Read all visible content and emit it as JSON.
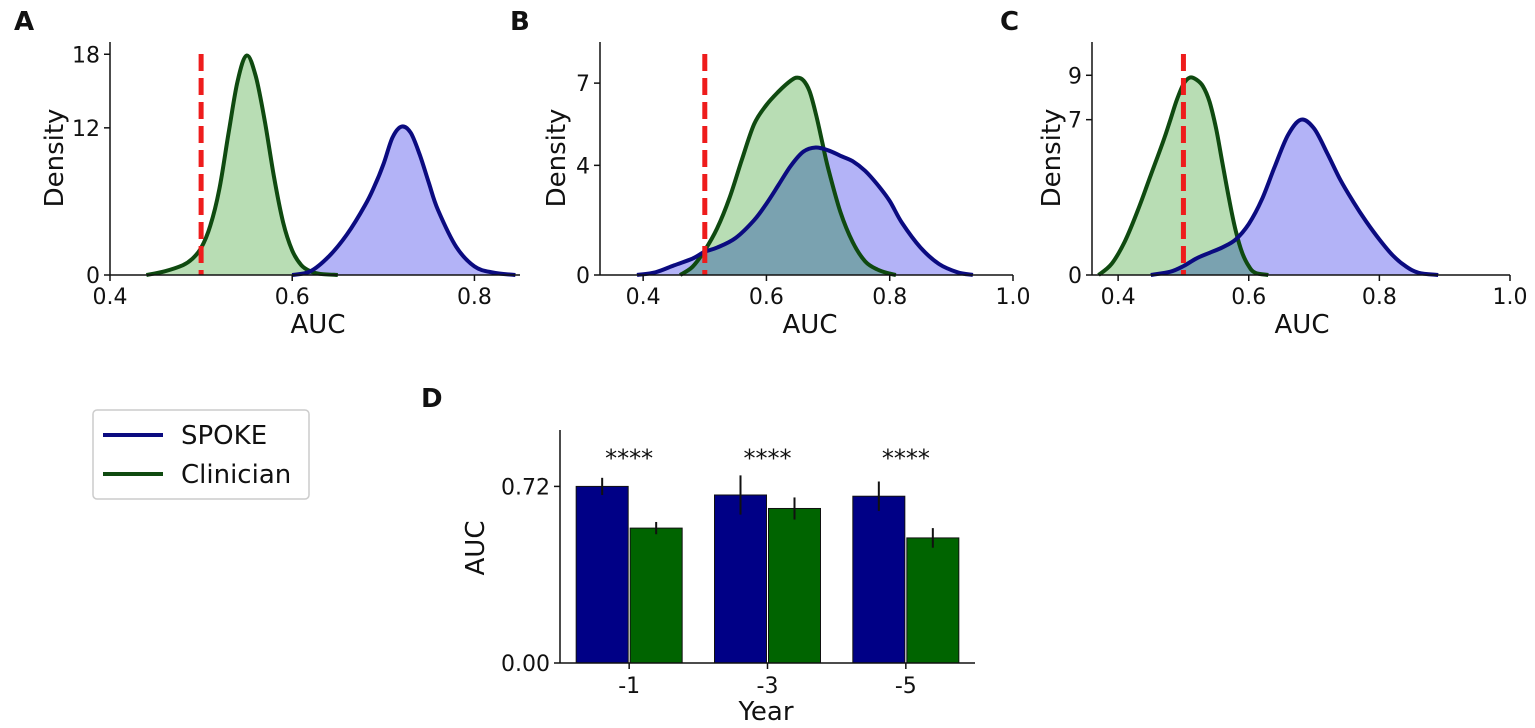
{
  "colors": {
    "spoke_line": "#0b0b80",
    "spoke_fill": "#b3b3f7",
    "clinician_line": "#0f4a10",
    "clinician_fill": "#b8ddb4",
    "overlap_fill": "#7aa2b0",
    "chance_line": "#ee1c1c",
    "spoke_bar": "#000086",
    "clinician_bar": "#006400"
  },
  "legend": {
    "entries": [
      {
        "label": "SPOKE",
        "color": "#0b0b80"
      },
      {
        "label": "Clinician",
        "color": "#0f4a10"
      }
    ]
  },
  "chart_data": [
    {
      "panel": "A",
      "type": "area",
      "title": "",
      "xlabel": "AUC",
      "ylabel": "Density",
      "xlim": [
        0.4,
        0.85
      ],
      "ylim": [
        0,
        19
      ],
      "xticks": [
        0.4,
        0.6,
        0.8
      ],
      "xtick_labels": [
        "0.4",
        "0.6",
        "0.8"
      ],
      "yticks": [
        0,
        12,
        18
      ],
      "ytick_labels": [
        "0",
        "12",
        "18"
      ],
      "chance_x": 0.5,
      "series": [
        {
          "name": "Clinician",
          "x": [
            0.44,
            0.46,
            0.48,
            0.49,
            0.5,
            0.51,
            0.52,
            0.53,
            0.54,
            0.55,
            0.56,
            0.57,
            0.58,
            0.59,
            0.6,
            0.61,
            0.62,
            0.63,
            0.65
          ],
          "y": [
            0,
            0.3,
            0.8,
            1.3,
            2.2,
            4.0,
            7.0,
            11.5,
            15.8,
            17.9,
            16.2,
            12.5,
            8.0,
            4.3,
            2.0,
            0.8,
            0.3,
            0.1,
            0
          ]
        },
        {
          "name": "SPOKE",
          "x": [
            0.6,
            0.62,
            0.64,
            0.66,
            0.68,
            0.69,
            0.7,
            0.71,
            0.72,
            0.73,
            0.74,
            0.75,
            0.76,
            0.78,
            0.8,
            0.82,
            0.845
          ],
          "y": [
            0,
            0.3,
            1.5,
            3.3,
            5.7,
            7.2,
            9.0,
            11.2,
            12.1,
            11.6,
            9.8,
            7.5,
            5.3,
            2.3,
            0.7,
            0.2,
            0
          ]
        }
      ]
    },
    {
      "panel": "B",
      "type": "area",
      "title": "",
      "xlabel": "AUC",
      "ylabel": "Density",
      "xlim": [
        0.33,
        1.0
      ],
      "ylim": [
        0,
        8.5
      ],
      "xticks": [
        0.4,
        0.6,
        0.8,
        1.0
      ],
      "xtick_labels": [
        "0.4",
        "0.6",
        "0.8",
        "1.0"
      ],
      "yticks": [
        0,
        4,
        7
      ],
      "ytick_labels": [
        "0",
        "4",
        "7"
      ],
      "chance_x": 0.5,
      "series": [
        {
          "name": "Clinician",
          "x": [
            0.46,
            0.48,
            0.5,
            0.52,
            0.54,
            0.56,
            0.58,
            0.6,
            0.62,
            0.64,
            0.65,
            0.66,
            0.67,
            0.68,
            0.69,
            0.7,
            0.72,
            0.74,
            0.76,
            0.78,
            0.8,
            0.81
          ],
          "y": [
            0,
            0.3,
            0.9,
            1.7,
            2.8,
            4.2,
            5.5,
            6.2,
            6.7,
            7.1,
            7.2,
            7.1,
            6.7,
            5.9,
            4.9,
            3.9,
            2.3,
            1.2,
            0.5,
            0.2,
            0.05,
            0
          ]
        },
        {
          "name": "SPOKE",
          "x": [
            0.39,
            0.42,
            0.45,
            0.48,
            0.5,
            0.52,
            0.55,
            0.58,
            0.6,
            0.62,
            0.64,
            0.66,
            0.68,
            0.7,
            0.72,
            0.74,
            0.76,
            0.78,
            0.8,
            0.82,
            0.85,
            0.88,
            0.91,
            0.935
          ],
          "y": [
            0,
            0.1,
            0.35,
            0.6,
            0.85,
            1.0,
            1.35,
            2.0,
            2.6,
            3.3,
            4.0,
            4.5,
            4.65,
            4.55,
            4.35,
            4.15,
            3.8,
            3.3,
            2.7,
            1.9,
            1.0,
            0.4,
            0.1,
            0
          ]
        }
      ]
    },
    {
      "panel": "C",
      "type": "area",
      "title": "",
      "xlabel": "AUC",
      "ylabel": "Density",
      "xlim": [
        0.36,
        1.0
      ],
      "ylim": [
        0,
        10.5
      ],
      "xticks": [
        0.4,
        0.6,
        0.8,
        1.0
      ],
      "xtick_labels": [
        "0.4",
        "0.6",
        "0.8",
        "1.0"
      ],
      "yticks": [
        0,
        7,
        9
      ],
      "ytick_labels": [
        "0",
        "7",
        "9"
      ],
      "chance_x": 0.5,
      "series": [
        {
          "name": "Clinician",
          "x": [
            0.37,
            0.39,
            0.41,
            0.43,
            0.45,
            0.47,
            0.48,
            0.49,
            0.5,
            0.51,
            0.52,
            0.53,
            0.54,
            0.55,
            0.56,
            0.57,
            0.58,
            0.59,
            0.6,
            0.61,
            0.63
          ],
          "y": [
            0,
            0.5,
            1.5,
            2.9,
            4.5,
            6.1,
            7.0,
            7.9,
            8.6,
            8.9,
            8.8,
            8.5,
            7.8,
            6.6,
            5.0,
            3.4,
            2.0,
            1.0,
            0.4,
            0.1,
            0
          ]
        },
        {
          "name": "SPOKE",
          "x": [
            0.45,
            0.48,
            0.5,
            0.52,
            0.54,
            0.56,
            0.58,
            0.6,
            0.62,
            0.64,
            0.66,
            0.68,
            0.7,
            0.72,
            0.74,
            0.76,
            0.78,
            0.8,
            0.82,
            0.84,
            0.86,
            0.89
          ],
          "y": [
            0,
            0.15,
            0.4,
            0.75,
            1.0,
            1.25,
            1.6,
            2.3,
            3.4,
            4.9,
            6.3,
            7.0,
            6.6,
            5.5,
            4.3,
            3.3,
            2.4,
            1.6,
            0.9,
            0.4,
            0.1,
            0
          ]
        }
      ]
    },
    {
      "panel": "D",
      "type": "bar",
      "title": "",
      "xlabel": "Year",
      "ylabel": "AUC",
      "ylim": [
        0,
        0.95
      ],
      "yticks": [
        0.0,
        0.72
      ],
      "ytick_labels": [
        "0.00",
        "0.72"
      ],
      "categories": [
        "-1",
        "-3",
        "-5"
      ],
      "annotations": [
        "****",
        "****",
        "****"
      ],
      "series": [
        {
          "name": "SPOKE",
          "values": [
            0.72,
            0.685,
            0.68
          ],
          "errors": [
            0.035,
            0.08,
            0.06
          ]
        },
        {
          "name": "Clinician",
          "values": [
            0.55,
            0.63,
            0.51
          ],
          "errors": [
            0.025,
            0.045,
            0.04
          ]
        }
      ]
    }
  ]
}
